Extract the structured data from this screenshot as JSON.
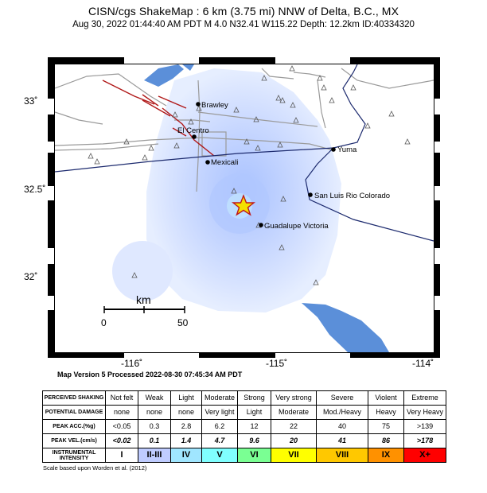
{
  "header": {
    "title": "CISN/cgs ShakeMap : 6 km (3.75 mi) NNW of Delta, B.C., MX",
    "subtitle": "Aug 30, 2022 01:44:40 AM PDT   M 4.0   N32.41 W115.22   Depth: 12.2km   ID:40334320"
  },
  "map": {
    "lat_labels": [
      "33˚",
      "32.5˚",
      "32˚"
    ],
    "lon_labels": [
      "-116˚",
      "-115˚",
      "-114˚"
    ],
    "cities": [
      {
        "name": "Brawley",
        "label": "Brawley"
      },
      {
        "name": "El Centro",
        "label": "El Centro"
      },
      {
        "name": "Mexicali",
        "label": "Mexicali"
      },
      {
        "name": "Yuma",
        "label": "Yuma"
      },
      {
        "name": "San Luis Rio Colorado",
        "label": "San Luis Rio Colorado"
      },
      {
        "name": "Guadalupe Victoria",
        "label": "Guadalupe Victoria"
      }
    ],
    "scale_bar": {
      "unit": "km",
      "start": "0",
      "end": "50"
    },
    "epicenter": {
      "lat": 32.41,
      "lon": -115.22
    },
    "colors": {
      "water": "#5b8fd9",
      "intensity_light": "#dfe9ff",
      "intensity_mid": "#c6d6ff",
      "epicenter_star": "#f3e000",
      "fault": "#b01818",
      "road": "#9a9a9a",
      "border": "#1c2a6e"
    }
  },
  "version_line": "Map Version 5 Processed 2022-08-30 07:45:34 AM PDT",
  "legend": {
    "rows": [
      {
        "header": "PERCEIVED SHAKING",
        "values": [
          "Not felt",
          "Weak",
          "Light",
          "Moderate",
          "Strong",
          "Very strong",
          "Severe",
          "Violent",
          "Extreme"
        ]
      },
      {
        "header": "POTENTIAL DAMAGE",
        "values": [
          "none",
          "none",
          "none",
          "Very light",
          "Light",
          "Moderate",
          "Mod./Heavy",
          "Heavy",
          "Very Heavy"
        ]
      },
      {
        "header": "PEAK ACC.(%g)",
        "values": [
          "<0.05",
          "0.3",
          "2.8",
          "6.2",
          "12",
          "22",
          "40",
          "75",
          ">139"
        ]
      },
      {
        "header": "PEAK VEL.(cm/s)",
        "values": [
          "<0.02",
          "0.1",
          "1.4",
          "4.7",
          "9.6",
          "20",
          "41",
          "86",
          ">178"
        ]
      },
      {
        "header": "INSTRUMENTAL INTENSITY",
        "values": [
          "I",
          "II-III",
          "IV",
          "V",
          "VI",
          "VII",
          "VIII",
          "IX",
          "X+"
        ]
      }
    ],
    "mmi_colors": [
      "#ffffff",
      "#bfccff",
      "#a0e6ff",
      "#80ffff",
      "#7aff93",
      "#ffff00",
      "#ffc800",
      "#ff9100",
      "#ff0000"
    ]
  },
  "credit": "Scale based upon Worden et al. (2012)"
}
